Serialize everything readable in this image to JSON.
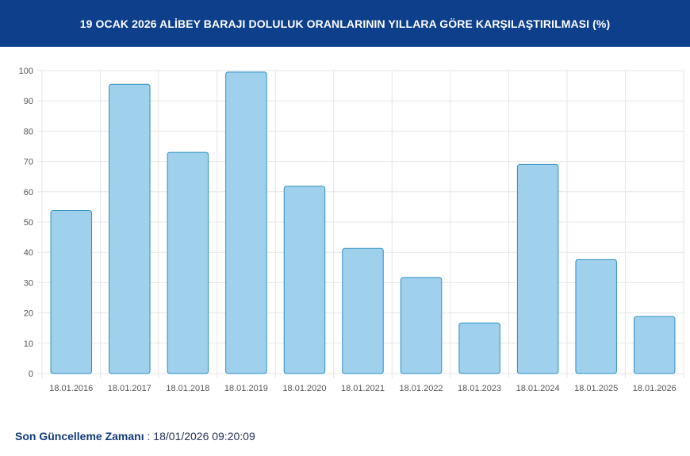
{
  "header": {
    "title": "19 OCAK 2026 ALİBEY BARAJI DOLULUK ORANLARININ YILLARA GÖRE KARŞILAŞTIRILMASI (%)"
  },
  "colors": {
    "header_bg": "#0e3f8a",
    "bar_fill": "#9fd0ec",
    "bar_stroke": "#2e8fc4",
    "grid": "#e6e6e6"
  },
  "chart_data": {
    "type": "bar",
    "title": "19 OCAK 2026 ALİBEY BARAJI DOLULUK ORANLARININ YILLARA GÖRE KARŞILAŞTIRILMASI (%)",
    "categories": [
      "18.01.2016",
      "18.01.2017",
      "18.01.2018",
      "18.01.2019",
      "18.01.2020",
      "18.01.2021",
      "18.01.2022",
      "18.01.2023",
      "18.01.2024",
      "18.01.2025",
      "18.01.2026"
    ],
    "values": [
      53.8,
      95.5,
      73.0,
      99.5,
      61.8,
      41.3,
      31.7,
      16.7,
      69.0,
      37.6,
      18.8
    ],
    "ylim": [
      0,
      100
    ],
    "yticks": [
      0,
      10,
      20,
      30,
      40,
      50,
      60,
      70,
      80,
      90,
      100
    ],
    "grid": true,
    "legend": "none"
  },
  "footer": {
    "label": "Son Güncelleme Zamanı",
    "separator": " : ",
    "value": "18/01/2026 09:20:09"
  }
}
